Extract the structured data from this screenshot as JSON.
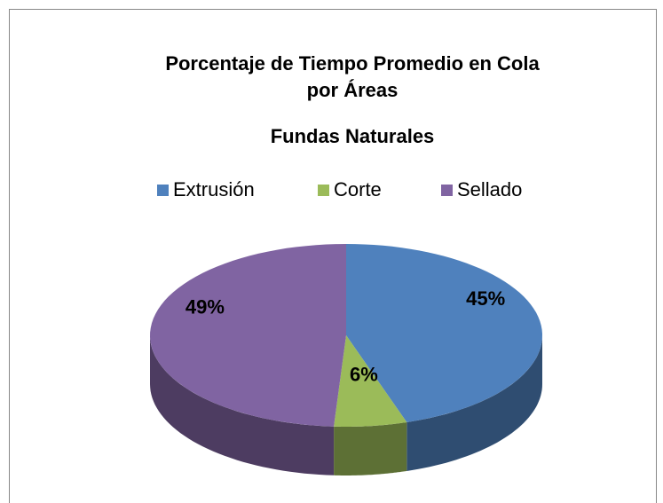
{
  "chart_data": {
    "type": "pie3d",
    "title": [
      "Porcentaje de Tiempo Promedio en Cola",
      "por Áreas"
    ],
    "subtitle": "Fundas Naturales",
    "categories": [
      "Extrusión",
      "Corte",
      "Sellado"
    ],
    "values": [
      45,
      6,
      49
    ],
    "value_labels": [
      "45%",
      "6%",
      "49%"
    ],
    "colors": [
      "#4f81bd",
      "#9bbb59",
      "#8064a2"
    ],
    "legend": "top"
  }
}
